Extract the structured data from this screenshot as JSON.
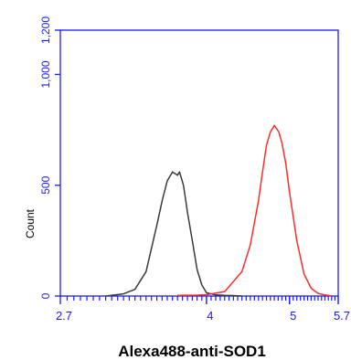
{
  "chart_data": {
    "type": "line",
    "title": "",
    "xlabel": "Alexa488-anti-SOD1",
    "ylabel": "Count",
    "yticks": [
      {
        "value": 0,
        "label": "0"
      },
      {
        "value": 500,
        "label": "500"
      },
      {
        "value": 1000,
        "label": "1,000"
      },
      {
        "value": 1200,
        "label": "1,200"
      }
    ],
    "xticks": [
      {
        "value": 2.7,
        "label": "2.7"
      },
      {
        "value": 4,
        "label": "4"
      },
      {
        "value": 5,
        "label": "5"
      },
      {
        "value": 5.7,
        "label": "5.7"
      }
    ],
    "ylim": [
      0,
      1200
    ],
    "xlim": [
      2.7,
      5.7
    ],
    "x_scale": "log",
    "grid": false,
    "series": [
      {
        "color": "#3a3a3a",
        "x": [
          3.05,
          3.2,
          3.3,
          3.4,
          3.5,
          3.55,
          3.6,
          3.65,
          3.7,
          3.72,
          3.74,
          3.76,
          3.78,
          3.8,
          3.85,
          3.9,
          3.95,
          4.0,
          4.1,
          4.2,
          4.3,
          4.4
        ],
        "y": [
          0,
          10,
          30,
          110,
          320,
          430,
          520,
          560,
          545,
          560,
          530,
          500,
          440,
          380,
          250,
          120,
          50,
          15,
          5,
          3,
          2,
          0
        ]
      },
      {
        "color": "#ff2a2a",
        "x": [
          3.7,
          3.9,
          4.0,
          4.2,
          4.4,
          4.5,
          4.6,
          4.65,
          4.7,
          4.75,
          4.8,
          4.82,
          4.86,
          4.9,
          4.95,
          5.0,
          5.1,
          5.2,
          5.3,
          5.4,
          5.5,
          5.6
        ],
        "y": [
          3,
          4,
          6,
          20,
          110,
          230,
          430,
          560,
          680,
          740,
          770,
          760,
          740,
          690,
          600,
          470,
          250,
          100,
          35,
          12,
          5,
          0
        ]
      }
    ],
    "colors": {
      "frame": "#1a1aff",
      "tick_labels": "#1a1aff",
      "axis_title": "#000000"
    }
  }
}
